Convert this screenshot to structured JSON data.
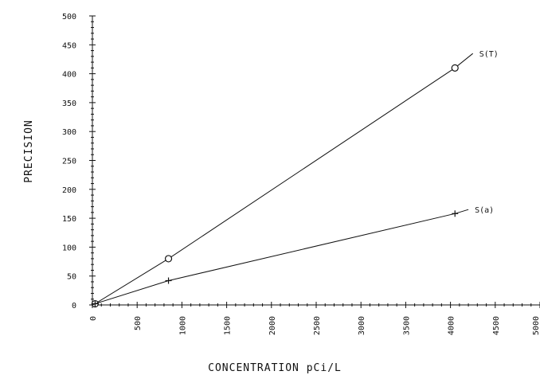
{
  "chart_data": {
    "type": "line",
    "title": "",
    "xlabel": "CONCENTRATION pCi/L",
    "ylabel": "PRECISION",
    "xlim": [
      0,
      5000
    ],
    "ylim": [
      0,
      500
    ],
    "x_ticks": [
      0,
      500,
      1000,
      1500,
      2000,
      2500,
      3000,
      3500,
      4000,
      4500,
      5000
    ],
    "x_tick_labels": [
      "0",
      "500",
      "1000",
      "1500",
      "2000",
      "2500",
      "3000",
      "3500",
      "4000",
      "4500",
      "5000"
    ],
    "y_ticks": [
      0,
      50,
      100,
      150,
      200,
      250,
      300,
      350,
      400,
      450,
      500
    ],
    "y_tick_labels": [
      "0",
      "50",
      "100",
      "150",
      "200",
      "250",
      "300",
      "350",
      "400",
      "450",
      "500"
    ],
    "grid": false,
    "series": [
      {
        "name": "S(T)",
        "marker": "circle",
        "x": [
          0,
          30,
          850,
          4050,
          4250
        ],
        "y": [
          0,
          2,
          80,
          410,
          435
        ],
        "marked_points": [
          [
            30,
            2
          ],
          [
            850,
            80
          ],
          [
            4050,
            410
          ]
        ]
      },
      {
        "name": "S(a)",
        "marker": "plus",
        "x": [
          0,
          30,
          850,
          4050,
          4200
        ],
        "y": [
          0,
          2,
          42,
          158,
          165
        ],
        "marked_points": [
          [
            30,
            2
          ],
          [
            850,
            42
          ],
          [
            4050,
            158
          ]
        ]
      }
    ]
  }
}
